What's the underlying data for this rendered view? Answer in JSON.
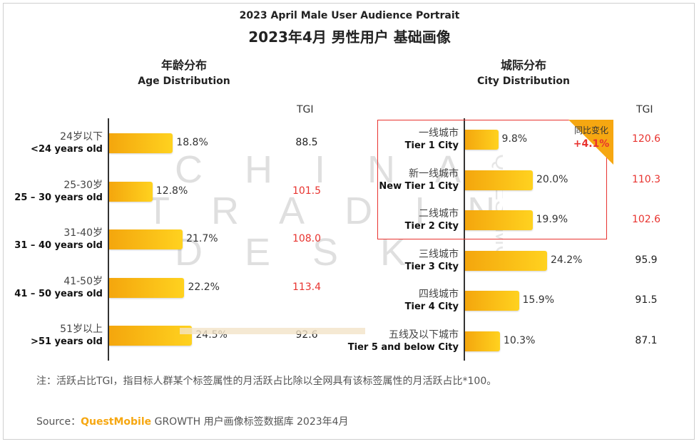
{
  "header": {
    "title_en": "2023 April Male User Audience Portrait",
    "title_cn": "2023年4月 男性用户 基础画像"
  },
  "watermark": {
    "line1": "C H I N A",
    "line2": "T R A D I N G",
    "line3": "D E S K",
    "side": "QUESTMOBILE"
  },
  "chart_data": [
    {
      "type": "bar",
      "orientation": "horizontal",
      "title_cn": "年龄分布",
      "title_en": "Age Distribution",
      "tgi_header": "TGI",
      "categories_cn": [
        "24岁以下",
        "25-30岁",
        "31-40岁",
        "41-50岁",
        "51岁以上"
      ],
      "categories_en": [
        "<24 years old",
        "25 – 30 years old",
        "31 – 40 years old",
        "41 – 50 years old",
        ">51 years old"
      ],
      "values": [
        18.8,
        12.8,
        21.7,
        22.2,
        24.5
      ],
      "value_labels": [
        "18.8%",
        "12.8%",
        "21.7%",
        "22.2%",
        "24.5%"
      ],
      "tgi": [
        "88.5",
        "101.5",
        "108.0",
        "113.4",
        "92.6"
      ],
      "tgi_highlight": [
        false,
        true,
        true,
        true,
        false
      ],
      "bar_color": "#F6A711",
      "highlight_color": "#E8332F"
    },
    {
      "type": "bar",
      "orientation": "horizontal",
      "title_cn": "城际分布",
      "title_en": "City Distribution",
      "tgi_header": "TGI",
      "categories_cn": [
        "一线城市",
        "新一线城市",
        "二线城市",
        "三线城市",
        "四线城市",
        "五线及以下城市"
      ],
      "categories_en": [
        "Tier 1 City",
        "New Tier 1 City",
        "Tier 2 City",
        "Tier 3 City",
        "Tier 4 City",
        "Tier 5 and below City"
      ],
      "values": [
        9.8,
        20.0,
        19.9,
        24.2,
        15.9,
        10.3
      ],
      "value_labels": [
        "9.8%",
        "20.0%",
        "19.9%",
        "24.2%",
        "15.9%",
        "10.3%"
      ],
      "tgi": [
        "120.6",
        "110.3",
        "102.6",
        "95.9",
        "91.5",
        "87.1"
      ],
      "tgi_highlight": [
        true,
        true,
        true,
        false,
        false,
        false
      ],
      "yoy_label": "同比变化",
      "yoy_value": "+4.1%",
      "bar_color": "#F6A711",
      "highlight_color": "#E8332F"
    }
  ],
  "footer": {
    "note": "注：活跃占比TGI，指目标人群某个标签属性的月活跃占比除以全网具有该标签属性的月活跃占比*100。",
    "source_prefix": "Source：",
    "source_brand": "QuestMobile",
    "source_rest": " GROWTH 用户画像标签数据库 2023年4月"
  }
}
